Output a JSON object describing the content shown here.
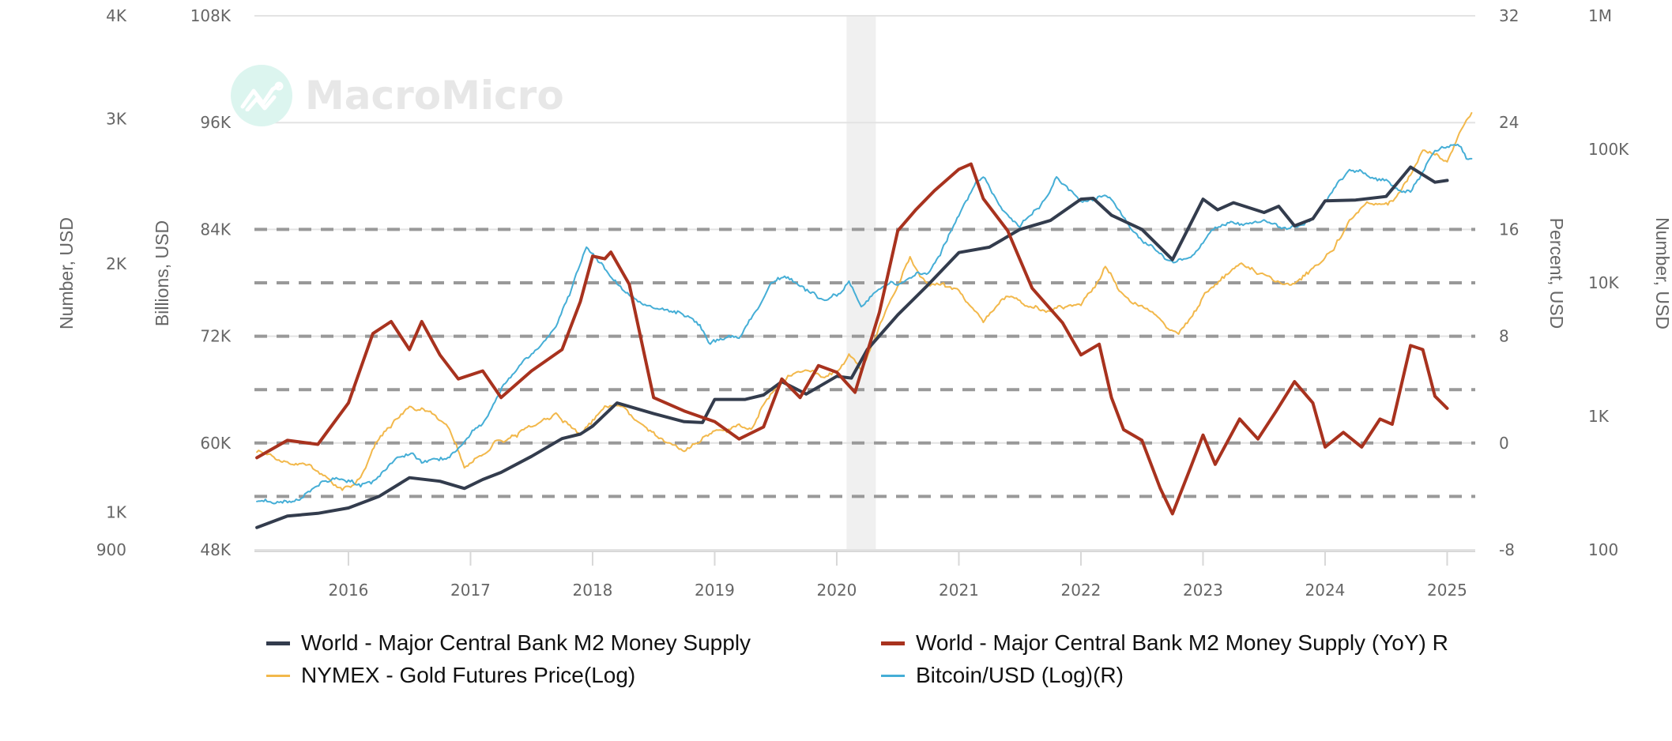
{
  "watermark": {
    "text": "MacroMicro",
    "icon": "chart-line-logo-icon"
  },
  "chart_data": {
    "type": "line",
    "title": "",
    "x_axis": {
      "type": "time",
      "range": [
        2015.23,
        2025.23
      ],
      "tick_labels": [
        "2016",
        "2017",
        "2018",
        "2019",
        "2020",
        "2021",
        "2022",
        "2023",
        "2024",
        "2025"
      ],
      "tick_values": [
        2016,
        2017,
        2018,
        2019,
        2020,
        2021,
        2022,
        2023,
        2024,
        2025
      ]
    },
    "y_axes": [
      {
        "id": "gold_axis",
        "side": "left-outer",
        "scale": "log",
        "title": "Number, USD",
        "range": [
          900,
          4000
        ],
        "tick_values": [
          900,
          1000,
          2000,
          3000,
          4000
        ],
        "tick_labels": [
          "900",
          "1K",
          "2K",
          "3K",
          "4K"
        ]
      },
      {
        "id": "m2_axis",
        "side": "left-inner",
        "scale": "linear",
        "title": "Billions, USD",
        "range": [
          48000,
          108000
        ],
        "tick_values": [
          48000,
          60000,
          72000,
          84000,
          96000,
          108000
        ],
        "tick_labels": [
          "48K",
          "60K",
          "72K",
          "84K",
          "96K",
          "108K"
        ],
        "grid": true
      },
      {
        "id": "yoy_axis",
        "side": "right-inner",
        "scale": "linear",
        "title": "Percent, USD",
        "range": [
          -8,
          32
        ],
        "tick_values": [
          -8,
          0,
          8,
          16,
          24,
          32
        ],
        "tick_labels": [
          "-8",
          "0",
          "8",
          "16",
          "24",
          "32"
        ],
        "dashed_lines": [
          -4,
          0,
          4,
          8,
          12,
          16
        ]
      },
      {
        "id": "btc_axis",
        "side": "right-outer",
        "scale": "log",
        "title": "Number, USD",
        "range": [
          100,
          1000000
        ],
        "tick_values": [
          100,
          1000,
          10000,
          100000,
          1000000
        ],
        "tick_labels": [
          "100",
          "1K",
          "10K",
          "100K",
          "1M"
        ]
      }
    ],
    "shaded_bands": [
      {
        "from": 2020.08,
        "to": 2020.32,
        "color": "#f0f0f0"
      }
    ],
    "series": [
      {
        "name": "World - Major Central Bank M2 Money Supply",
        "axis": "m2_axis",
        "color": "#333c4d",
        "width": 4,
        "frequency": "monthly",
        "points": [
          [
            2015.25,
            50500
          ],
          [
            2015.5,
            51800
          ],
          [
            2015.75,
            52100
          ],
          [
            2016.0,
            52700
          ],
          [
            2016.25,
            54000
          ],
          [
            2016.5,
            56100
          ],
          [
            2016.75,
            55700
          ],
          [
            2016.95,
            54900
          ],
          [
            2017.1,
            55900
          ],
          [
            2017.25,
            56700
          ],
          [
            2017.5,
            58500
          ],
          [
            2017.75,
            60500
          ],
          [
            2017.9,
            61000
          ],
          [
            2018.0,
            61900
          ],
          [
            2018.2,
            64500
          ],
          [
            2018.5,
            63300
          ],
          [
            2018.75,
            62400
          ],
          [
            2018.9,
            62300
          ],
          [
            2019.0,
            64900
          ],
          [
            2019.25,
            64900
          ],
          [
            2019.4,
            65400
          ],
          [
            2019.55,
            66900
          ],
          [
            2019.75,
            65500
          ],
          [
            2020.0,
            67500
          ],
          [
            2020.12,
            67300
          ],
          [
            2020.25,
            70500
          ],
          [
            2020.5,
            74400
          ],
          [
            2020.75,
            77800
          ],
          [
            2021.0,
            81400
          ],
          [
            2021.25,
            82000
          ],
          [
            2021.5,
            84000
          ],
          [
            2021.75,
            85000
          ],
          [
            2022.0,
            87400
          ],
          [
            2022.1,
            87500
          ],
          [
            2022.25,
            85600
          ],
          [
            2022.5,
            84000
          ],
          [
            2022.75,
            80600
          ],
          [
            2023.0,
            87400
          ],
          [
            2023.12,
            86200
          ],
          [
            2023.25,
            87000
          ],
          [
            2023.5,
            85900
          ],
          [
            2023.62,
            86600
          ],
          [
            2023.75,
            84400
          ],
          [
            2023.9,
            85200
          ],
          [
            2024.0,
            87200
          ],
          [
            2024.25,
            87300
          ],
          [
            2024.5,
            87700
          ],
          [
            2024.7,
            91000
          ],
          [
            2024.9,
            89300
          ],
          [
            2025.0,
            89500
          ]
        ]
      },
      {
        "name": "World - Major Central Bank M2 Money Supply (YoY) R",
        "axis": "yoy_axis",
        "color": "#a8321e",
        "width": 4,
        "frequency": "monthly",
        "points": [
          [
            2015.25,
            -1.1
          ],
          [
            2015.5,
            0.2
          ],
          [
            2015.75,
            -0.1
          ],
          [
            2016.0,
            3.0
          ],
          [
            2016.2,
            8.2
          ],
          [
            2016.35,
            9.1
          ],
          [
            2016.5,
            7.0
          ],
          [
            2016.6,
            9.1
          ],
          [
            2016.75,
            6.6
          ],
          [
            2016.9,
            4.8
          ],
          [
            2017.1,
            5.4
          ],
          [
            2017.25,
            3.4
          ],
          [
            2017.5,
            5.4
          ],
          [
            2017.75,
            7.0
          ],
          [
            2017.9,
            10.6
          ],
          [
            2018.0,
            14.0
          ],
          [
            2018.1,
            13.8
          ],
          [
            2018.15,
            14.3
          ],
          [
            2018.3,
            11.9
          ],
          [
            2018.5,
            3.4
          ],
          [
            2018.75,
            2.4
          ],
          [
            2019.0,
            1.6
          ],
          [
            2019.2,
            0.3
          ],
          [
            2019.4,
            1.2
          ],
          [
            2019.55,
            4.8
          ],
          [
            2019.7,
            3.4
          ],
          [
            2019.85,
            5.8
          ],
          [
            2020.0,
            5.3
          ],
          [
            2020.15,
            3.8
          ],
          [
            2020.35,
            9.8
          ],
          [
            2020.5,
            15.9
          ],
          [
            2020.65,
            17.5
          ],
          [
            2020.8,
            18.9
          ],
          [
            2021.0,
            20.5
          ],
          [
            2021.1,
            20.9
          ],
          [
            2021.2,
            18.3
          ],
          [
            2021.4,
            15.9
          ],
          [
            2021.6,
            11.6
          ],
          [
            2021.85,
            9.0
          ],
          [
            2022.0,
            6.6
          ],
          [
            2022.15,
            7.4
          ],
          [
            2022.25,
            3.4
          ],
          [
            2022.35,
            1.0
          ],
          [
            2022.5,
            0.2
          ],
          [
            2022.65,
            -3.4
          ],
          [
            2022.75,
            -5.3
          ],
          [
            2022.9,
            -1.8
          ],
          [
            2023.0,
            0.6
          ],
          [
            2023.1,
            -1.6
          ],
          [
            2023.3,
            1.8
          ],
          [
            2023.45,
            0.3
          ],
          [
            2023.6,
            2.4
          ],
          [
            2023.75,
            4.6
          ],
          [
            2023.9,
            3.0
          ],
          [
            2024.0,
            -0.3
          ],
          [
            2024.15,
            0.8
          ],
          [
            2024.3,
            -0.3
          ],
          [
            2024.45,
            1.8
          ],
          [
            2024.55,
            1.4
          ],
          [
            2024.7,
            7.3
          ],
          [
            2024.8,
            7.0
          ],
          [
            2024.9,
            3.5
          ],
          [
            2025.0,
            2.6
          ]
        ]
      },
      {
        "name": "NYMEX - Gold Futures Price(Log)",
        "axis": "gold_axis",
        "color": "#f2b84b",
        "width": 2,
        "frequency": "daily",
        "points": [
          [
            2015.25,
            1186
          ],
          [
            2015.5,
            1148
          ],
          [
            2015.75,
            1117
          ],
          [
            2015.95,
            1066
          ],
          [
            2016.1,
            1099
          ],
          [
            2016.25,
            1228
          ],
          [
            2016.5,
            1344
          ],
          [
            2016.6,
            1335
          ],
          [
            2016.8,
            1277
          ],
          [
            2016.95,
            1132
          ],
          [
            2017.2,
            1219
          ],
          [
            2017.45,
            1268
          ],
          [
            2017.7,
            1315
          ],
          [
            2017.9,
            1239
          ],
          [
            2018.1,
            1344
          ],
          [
            2018.3,
            1315
          ],
          [
            2018.6,
            1219
          ],
          [
            2018.75,
            1186
          ],
          [
            2019.0,
            1258
          ],
          [
            2019.3,
            1258
          ],
          [
            2019.5,
            1416
          ],
          [
            2019.7,
            1483
          ],
          [
            2019.9,
            1452
          ],
          [
            2020.1,
            1552
          ],
          [
            2020.2,
            1483
          ],
          [
            2020.4,
            1750
          ],
          [
            2020.6,
            2035
          ],
          [
            2020.75,
            1888
          ],
          [
            2021.0,
            1858
          ],
          [
            2021.2,
            1698
          ],
          [
            2021.4,
            1831
          ],
          [
            2021.7,
            1750
          ],
          [
            2022.0,
            1786
          ],
          [
            2022.2,
            1988
          ],
          [
            2022.4,
            1802
          ],
          [
            2022.6,
            1737
          ],
          [
            2022.8,
            1648
          ],
          [
            2023.0,
            1831
          ],
          [
            2023.3,
            2004
          ],
          [
            2023.5,
            1944
          ],
          [
            2023.75,
            1888
          ],
          [
            2024.0,
            2035
          ],
          [
            2024.2,
            2259
          ],
          [
            2024.4,
            2366
          ],
          [
            2024.6,
            2434
          ],
          [
            2024.8,
            2748
          ],
          [
            2025.0,
            2664
          ],
          [
            2025.2,
            3050
          ]
        ]
      },
      {
        "name": "Bitcoin/USD (Log)(R)",
        "axis": "btc_axis",
        "color": "#45aed6",
        "width": 2,
        "frequency": "daily",
        "points": [
          [
            2015.25,
            230
          ],
          [
            2015.6,
            239
          ],
          [
            2015.9,
            346
          ],
          [
            2016.1,
            302
          ],
          [
            2016.4,
            499
          ],
          [
            2016.6,
            454
          ],
          [
            2016.9,
            571
          ],
          [
            2017.1,
            873
          ],
          [
            2017.4,
            2425
          ],
          [
            2017.7,
            4600
          ],
          [
            2017.95,
            18470
          ],
          [
            2018.1,
            12790
          ],
          [
            2018.3,
            8040
          ],
          [
            2018.6,
            6290
          ],
          [
            2018.85,
            5060
          ],
          [
            2018.95,
            3500
          ],
          [
            2019.2,
            3860
          ],
          [
            2019.45,
            9730
          ],
          [
            2019.6,
            11000
          ],
          [
            2019.9,
            7310
          ],
          [
            2020.1,
            10270
          ],
          [
            2020.2,
            6640
          ],
          [
            2020.5,
            9730
          ],
          [
            2020.75,
            11600
          ],
          [
            2021.0,
            32250
          ],
          [
            2021.2,
            62100
          ],
          [
            2021.5,
            26650
          ],
          [
            2021.8,
            62100
          ],
          [
            2022.0,
            40200
          ],
          [
            2022.25,
            42400
          ],
          [
            2022.5,
            20300
          ],
          [
            2022.9,
            15460
          ],
          [
            2023.1,
            25900
          ],
          [
            2023.5,
            29300
          ],
          [
            2023.8,
            26650
          ],
          [
            2024.0,
            40200
          ],
          [
            2024.2,
            70200
          ],
          [
            2024.5,
            58700
          ],
          [
            2024.7,
            48500
          ],
          [
            2024.9,
            98600
          ],
          [
            2025.1,
            107000
          ],
          [
            2025.2,
            85000
          ]
        ]
      }
    ],
    "legend": {
      "position": "bottom",
      "items": [
        {
          "label": "World - Major Central Bank M2 Money Supply",
          "color": "#333c4d"
        },
        {
          "label": "World - Major Central Bank M2 Money Supply (YoY) R",
          "color": "#a8321e"
        },
        {
          "label": "NYMEX - Gold Futures Price(Log)",
          "color": "#f2b84b"
        },
        {
          "label": "Bitcoin/USD (Log)(R)",
          "color": "#45aed6"
        }
      ]
    }
  }
}
